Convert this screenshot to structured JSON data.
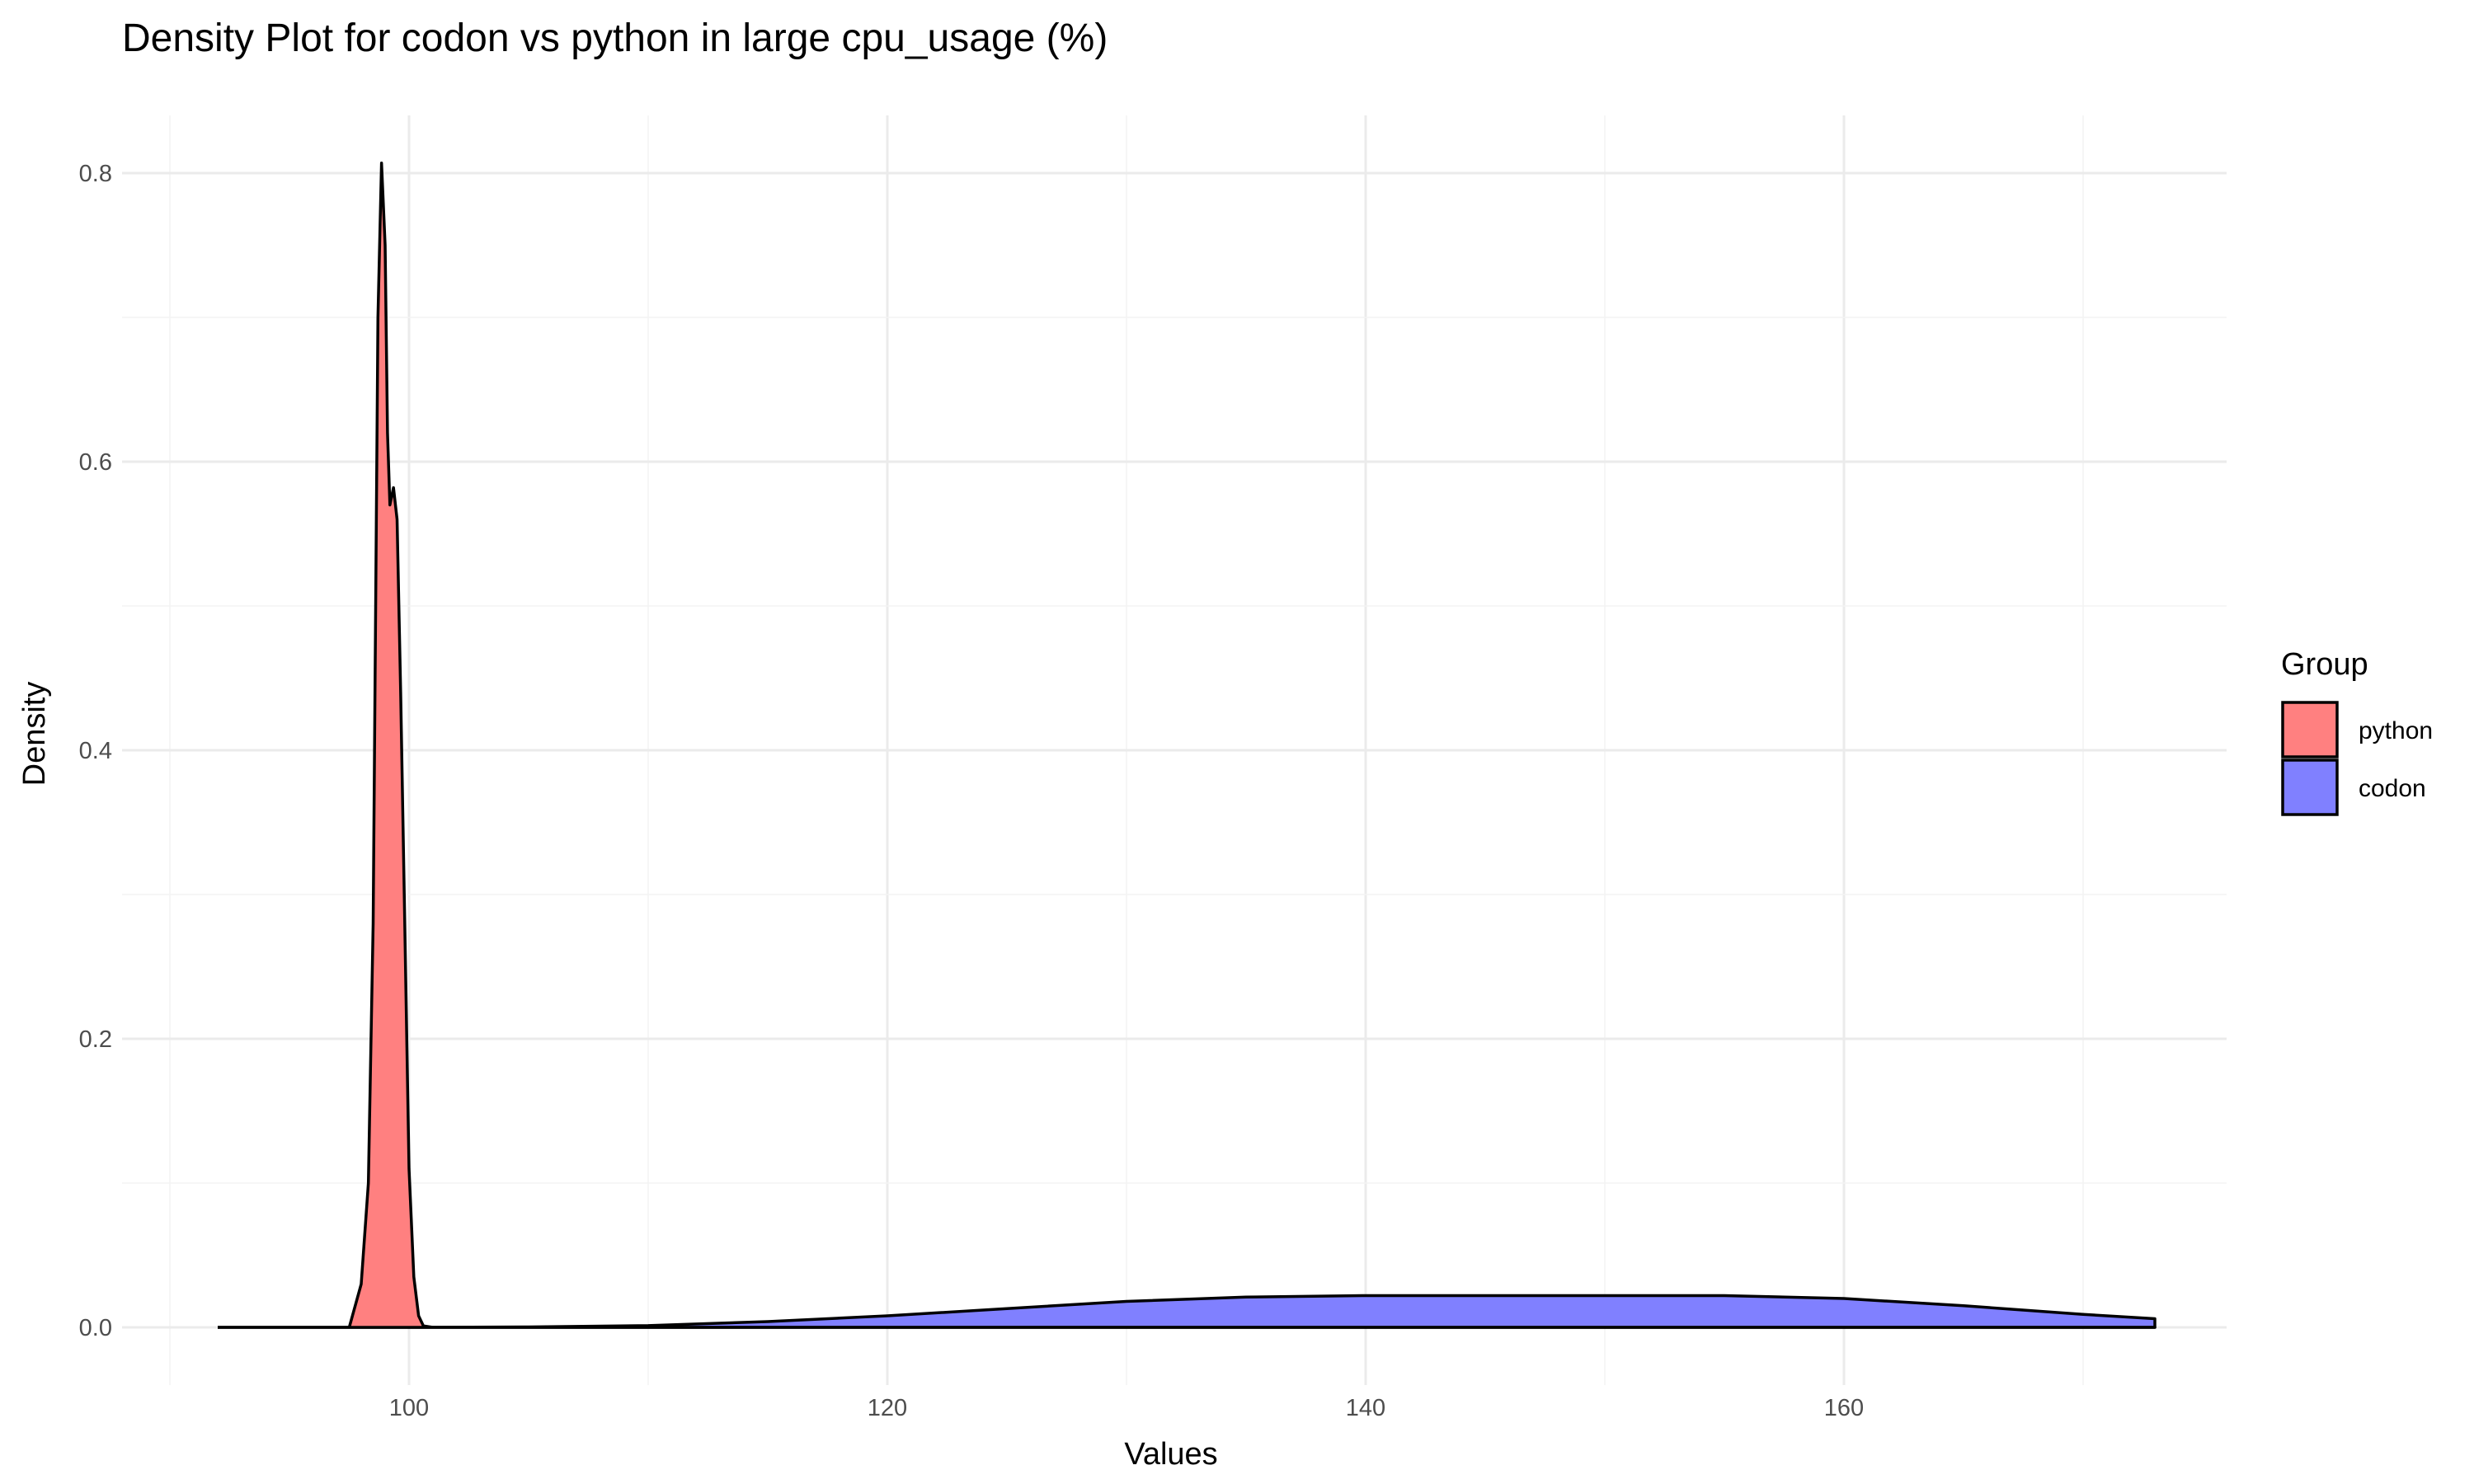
{
  "chart_data": {
    "type": "area",
    "title": "Density Plot for codon vs python in large cpu_usage (%)",
    "xlabel": "Values",
    "ylabel": "Density",
    "xlim": [
      88,
      176
    ],
    "ylim": [
      -0.04,
      0.84
    ],
    "x_ticks": [
      100,
      120,
      140,
      160
    ],
    "y_ticks": [
      0.0,
      0.2,
      0.4,
      0.6,
      0.8
    ],
    "grid": true,
    "legend": {
      "title": "Group",
      "position": "right"
    },
    "series": [
      {
        "name": "python",
        "color": "#ff8080",
        "x": [
          92,
          97.5,
          98.0,
          98.3,
          98.5,
          98.7,
          98.85,
          99.0,
          99.1,
          99.2,
          99.35,
          99.5,
          99.65,
          99.8,
          100.0,
          100.2,
          100.4,
          100.6,
          101.0,
          173
        ],
        "y": [
          0.0,
          0.0,
          0.03,
          0.1,
          0.28,
          0.7,
          0.807,
          0.75,
          0.62,
          0.57,
          0.582,
          0.56,
          0.44,
          0.3,
          0.11,
          0.035,
          0.008,
          0.001,
          0.0,
          0.0
        ]
      },
      {
        "name": "codon",
        "color": "#8080ff",
        "x": [
          92,
          100,
          105,
          110,
          115,
          120,
          125,
          130,
          135,
          140,
          145,
          150,
          155,
          160,
          165,
          170,
          173
        ],
        "y": [
          0.0,
          0.0,
          0.0003,
          0.0012,
          0.004,
          0.008,
          0.013,
          0.018,
          0.021,
          0.022,
          0.022,
          0.022,
          0.022,
          0.02,
          0.015,
          0.009,
          0.006
        ]
      }
    ]
  }
}
